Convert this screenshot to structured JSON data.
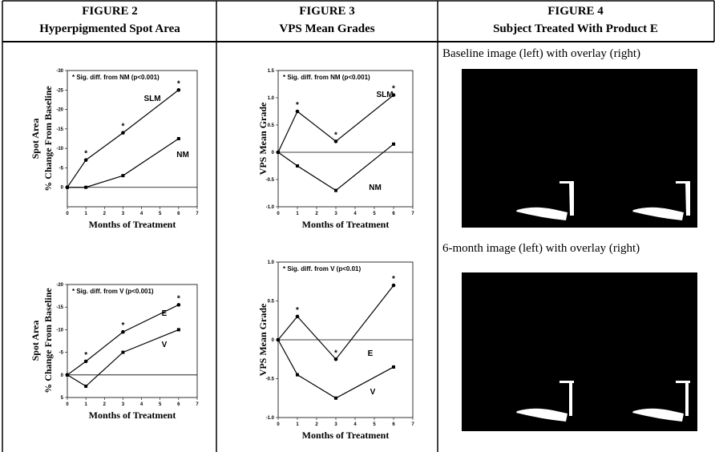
{
  "table": {
    "headers": [
      [
        "FIGURE 2",
        "Hyperpigmented Spot Area"
      ],
      [
        "FIGURE 3",
        "VPS Mean Grades"
      ],
      [
        "FIGURE 4",
        "Subject Treated With Product E"
      ]
    ],
    "captions": [
      "Baseline image (left) with  overlay (right)",
      "6-month image (left) with overlay (right)"
    ]
  },
  "chart_data": [
    {
      "type": "line",
      "annotation": "* Sig. diff. from NM (p<0.001)",
      "xlabel": "Months of Treatment",
      "ylabel": [
        "Spot Area",
        "% Change From Baseline"
      ],
      "x": [
        0,
        1,
        3,
        6
      ],
      "series": [
        {
          "name": "SLM",
          "color": "#000000",
          "values": [
            0,
            -7,
            -14,
            -25
          ]
        },
        {
          "name": "NM",
          "color": "#000000",
          "values": [
            0,
            0,
            -3,
            -12.5
          ]
        }
      ],
      "xlim": [
        0,
        7
      ],
      "xticks": [
        0,
        1,
        2,
        3,
        4,
        5,
        6,
        7
      ],
      "ylim": [
        5,
        -30
      ],
      "yticks": [
        -30,
        -25,
        -20,
        -15,
        -10,
        -5,
        0
      ],
      "sig_marker": "*",
      "sig_x": [
        1,
        3,
        6
      ]
    },
    {
      "type": "line",
      "annotation": "* Sig. diff. from NM (p<0.001)",
      "xlabel": "Months of Treatment",
      "ylabel": [
        "VPS Mean Grade"
      ],
      "x": [
        0,
        1,
        3,
        6
      ],
      "series": [
        {
          "name": "SLM",
          "color": "#000000",
          "values": [
            0,
            0.75,
            0.2,
            1.05
          ]
        },
        {
          "name": "NM",
          "color": "#000000",
          "values": [
            0,
            -0.25,
            -0.7,
            0.15
          ]
        }
      ],
      "xlim": [
        0,
        7
      ],
      "xticks": [
        0,
        1,
        2,
        3,
        4,
        5,
        6,
        7
      ],
      "ylim": [
        -1,
        1.5
      ],
      "yticks": [
        1.5,
        {
          "value": 1,
          "label": "1.0"
        },
        0.5,
        0,
        -0.5,
        {
          "value": -1,
          "label": "-1.0"
        }
      ],
      "sig_marker": "*",
      "sig_x": [
        1,
        3,
        6
      ]
    },
    {
      "type": "line",
      "annotation": "* Sig. diff. from V (p<0.001)",
      "xlabel": "Months of Treatment",
      "ylabel": [
        "Spot Area",
        "% Change From Baseline"
      ],
      "x": [
        0,
        1,
        3,
        6
      ],
      "series": [
        {
          "name": "E",
          "color": "#000000",
          "values": [
            0,
            -3,
            -9.5,
            -15.5
          ]
        },
        {
          "name": "V",
          "color": "#000000",
          "values": [
            0,
            2.5,
            -5,
            -10
          ]
        }
      ],
      "xlim": [
        0,
        7
      ],
      "xticks": [
        0,
        1,
        2,
        3,
        4,
        5,
        6,
        7
      ],
      "ylim": [
        5,
        -20
      ],
      "yticks": [
        -20,
        -15,
        -10,
        -5,
        0,
        5
      ],
      "sig_marker": "*",
      "sig_x": [
        1,
        3,
        6
      ]
    },
    {
      "type": "line",
      "annotation": "* Sig. diff. from V (p<0.01)",
      "xlabel": "Months of Treatment",
      "ylabel": [
        "VPS Mean Grade"
      ],
      "x": [
        0,
        1,
        3,
        6
      ],
      "series": [
        {
          "name": "E",
          "color": "#000000",
          "values": [
            0,
            0.3,
            -0.25,
            0.7
          ]
        },
        {
          "name": "V",
          "color": "#000000",
          "values": [
            0,
            -0.45,
            -0.75,
            -0.35
          ]
        }
      ],
      "xlim": [
        0,
        7
      ],
      "xticks": [
        0,
        1,
        2,
        3,
        4,
        5,
        6,
        7
      ],
      "ylim": [
        -1,
        1
      ],
      "yticks": [
        {
          "value": 1,
          "label": "1.0"
        },
        0.5,
        0,
        -0.5,
        {
          "value": -1,
          "label": "-1.0"
        }
      ],
      "sig_marker": "*",
      "sig_x": [
        1,
        3,
        6
      ]
    }
  ]
}
